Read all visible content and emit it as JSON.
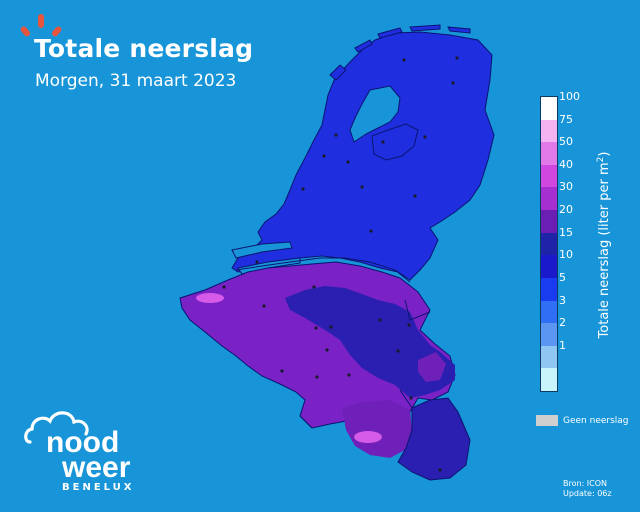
{
  "header": {
    "title": "Totale neerslag",
    "subtitle": "Morgen, 31 maart 2023"
  },
  "legend": {
    "title": "Totale neerslag (liter per m",
    "title_sup": "2",
    "title_end": ")",
    "levels": [
      "100",
      "75",
      "50",
      "40",
      "30",
      "20",
      "15",
      "10",
      "5",
      "3",
      "2",
      "1"
    ],
    "colors": [
      "#ffffff",
      "#f2b3f0",
      "#e17ae8",
      "#d047e0",
      "#a52fd0",
      "#6a1eb4",
      "#1e23a8",
      "#1a1acc",
      "#1a3cf0",
      "#2e6ff5",
      "#5a96f2",
      "#90c6f2",
      "#c8f4fb"
    ],
    "no_data_label": "Geen neerslag",
    "no_data_color": "#cfcfcf"
  },
  "source": {
    "line1": "Bron: ICON",
    "line2": "Update: 06z"
  },
  "logo": {
    "line1": "nood",
    "line2": "weer",
    "sub": "BENELUX"
  },
  "colors": {
    "background": "#1795d8",
    "nl": "#1f2fe0",
    "nl_south": "#1c24c8",
    "be_west": "#7a22c6",
    "be_dark": "#2a1fb0",
    "ardennes": "#6e20b8",
    "luxembourg": "#2a1fb0",
    "hotspot": "#d65be8",
    "sun": "#e8543c"
  }
}
